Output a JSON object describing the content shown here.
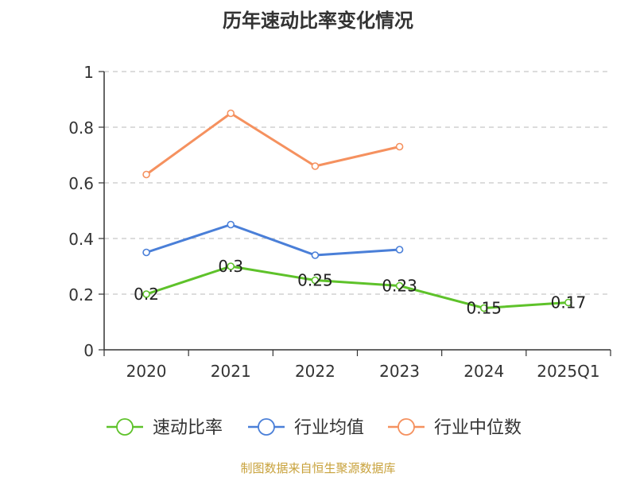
{
  "chart_data": {
    "type": "line",
    "title": "历年速动比率变化情况",
    "categories": [
      "2020",
      "2021",
      "2022",
      "2023",
      "2024",
      "2025Q1"
    ],
    "ylim": [
      0,
      1
    ],
    "yticks": [
      "0",
      "0.2",
      "0.4",
      "0.6",
      "0.8",
      "1"
    ],
    "grid": true,
    "legend_position": "bottom",
    "series": [
      {
        "name": "速动比率",
        "color": "#5ec22a",
        "values": [
          0.2,
          0.3,
          0.25,
          0.23,
          0.15,
          0.17
        ],
        "labels": [
          "0.2",
          "0.3",
          "0.25",
          "0.23",
          "0.15",
          "0.17"
        ],
        "show_labels": true
      },
      {
        "name": "行业均值",
        "color": "#4a7fd8",
        "values": [
          0.35,
          0.45,
          0.34,
          0.36,
          null,
          null
        ],
        "show_labels": false
      },
      {
        "name": "行业中位数",
        "color": "#f5915f",
        "values": [
          0.63,
          0.85,
          0.66,
          0.73,
          null,
          null
        ],
        "show_labels": false
      }
    ],
    "source": "制图数据来自恒生聚源数据库"
  }
}
